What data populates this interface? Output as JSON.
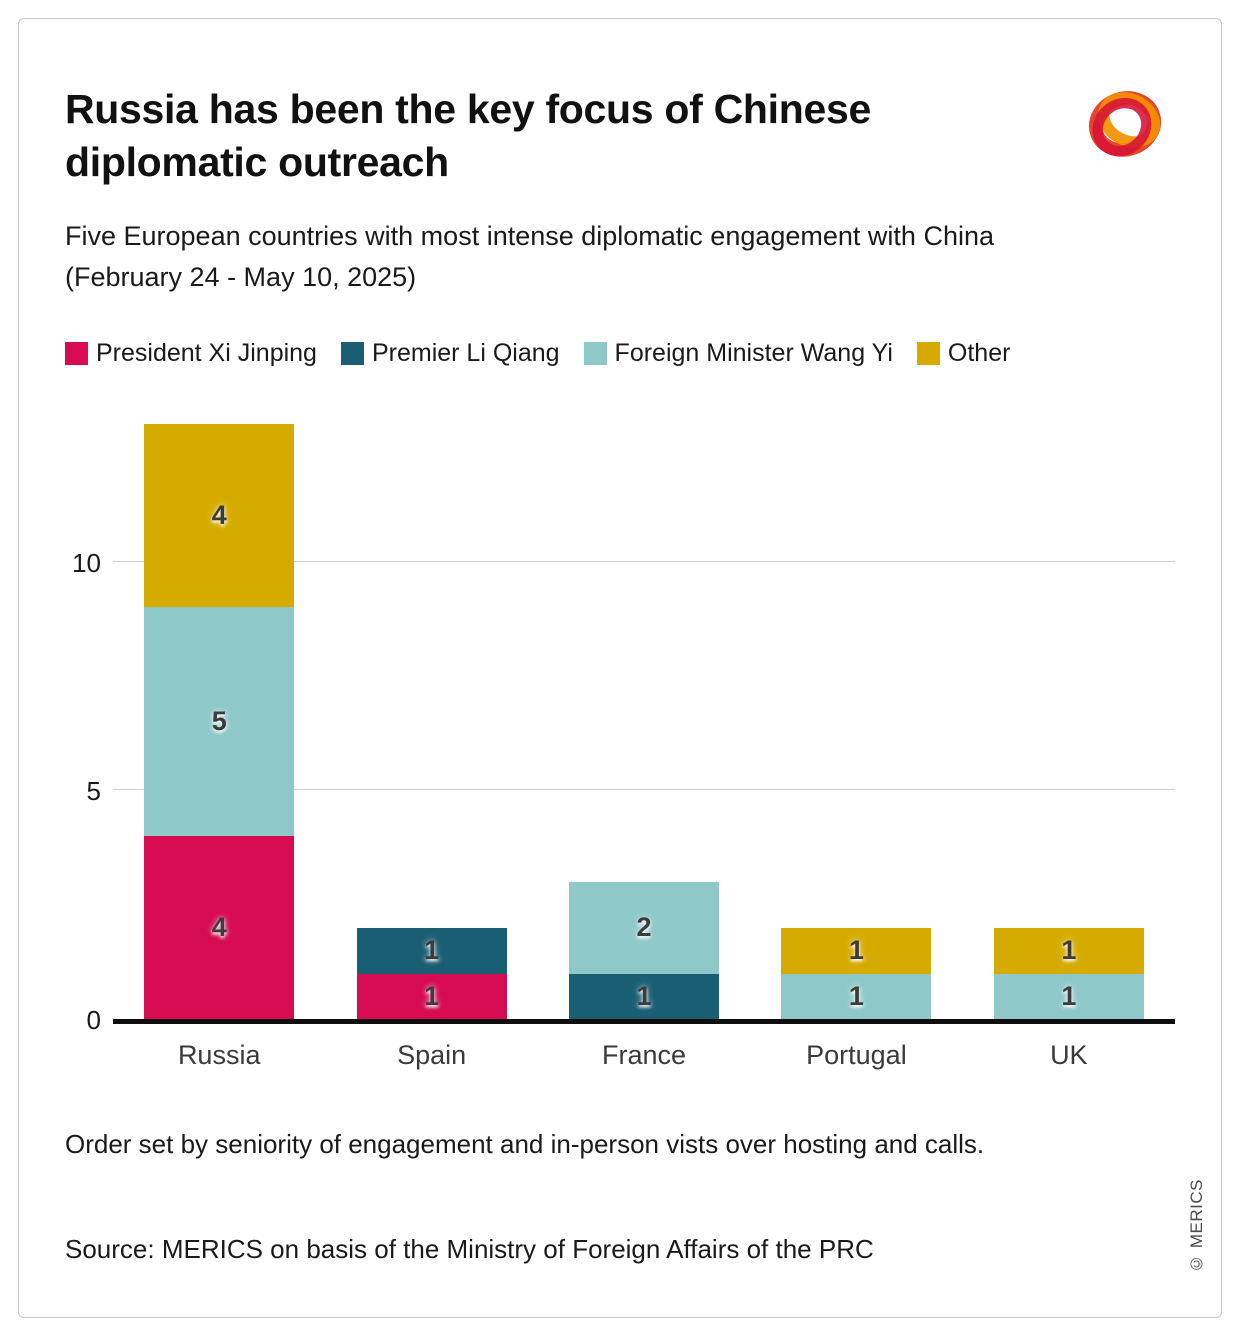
{
  "header": {
    "logo_icon": "merics-logo"
  },
  "chart_data": {
    "type": "bar",
    "stacked": true,
    "title": "Russia has been the key focus of Chinese diplomatic outreach",
    "subtitle": "Five European countries with most intense diplomatic engagement with China (February 24 - May 10, 2025)",
    "categories": [
      "Russia",
      "Spain",
      "France",
      "Portugal",
      "UK"
    ],
    "series": [
      {
        "name": "President Xi Jinping",
        "color": "#d60b52",
        "values": [
          4,
          1,
          0,
          0,
          0
        ]
      },
      {
        "name": "Premier Li Qiang",
        "color": "#1a5e74",
        "values": [
          0,
          1,
          1,
          0,
          0
        ]
      },
      {
        "name": "Foreign Minister Wang Yi",
        "color": "#8fc8c9",
        "values": [
          5,
          0,
          2,
          1,
          1
        ]
      },
      {
        "name": "Other",
        "color": "#d6ab00",
        "values": [
          4,
          0,
          0,
          1,
          1
        ]
      }
    ],
    "totals": [
      13,
      2,
      3,
      2,
      2
    ],
    "ylim": [
      0,
      13
    ],
    "yticks": [
      0,
      5,
      10
    ],
    "grid": "horizontal",
    "legend_position": "top",
    "xlabel": "",
    "ylabel": ""
  },
  "footer": {
    "footnote": "Order set by seniority of engagement and in-person vists over hosting and calls.",
    "source": "Source: MERICS on basis of the Ministry of Foreign Affairs of the PRC",
    "copyright": "© MERICS"
  }
}
